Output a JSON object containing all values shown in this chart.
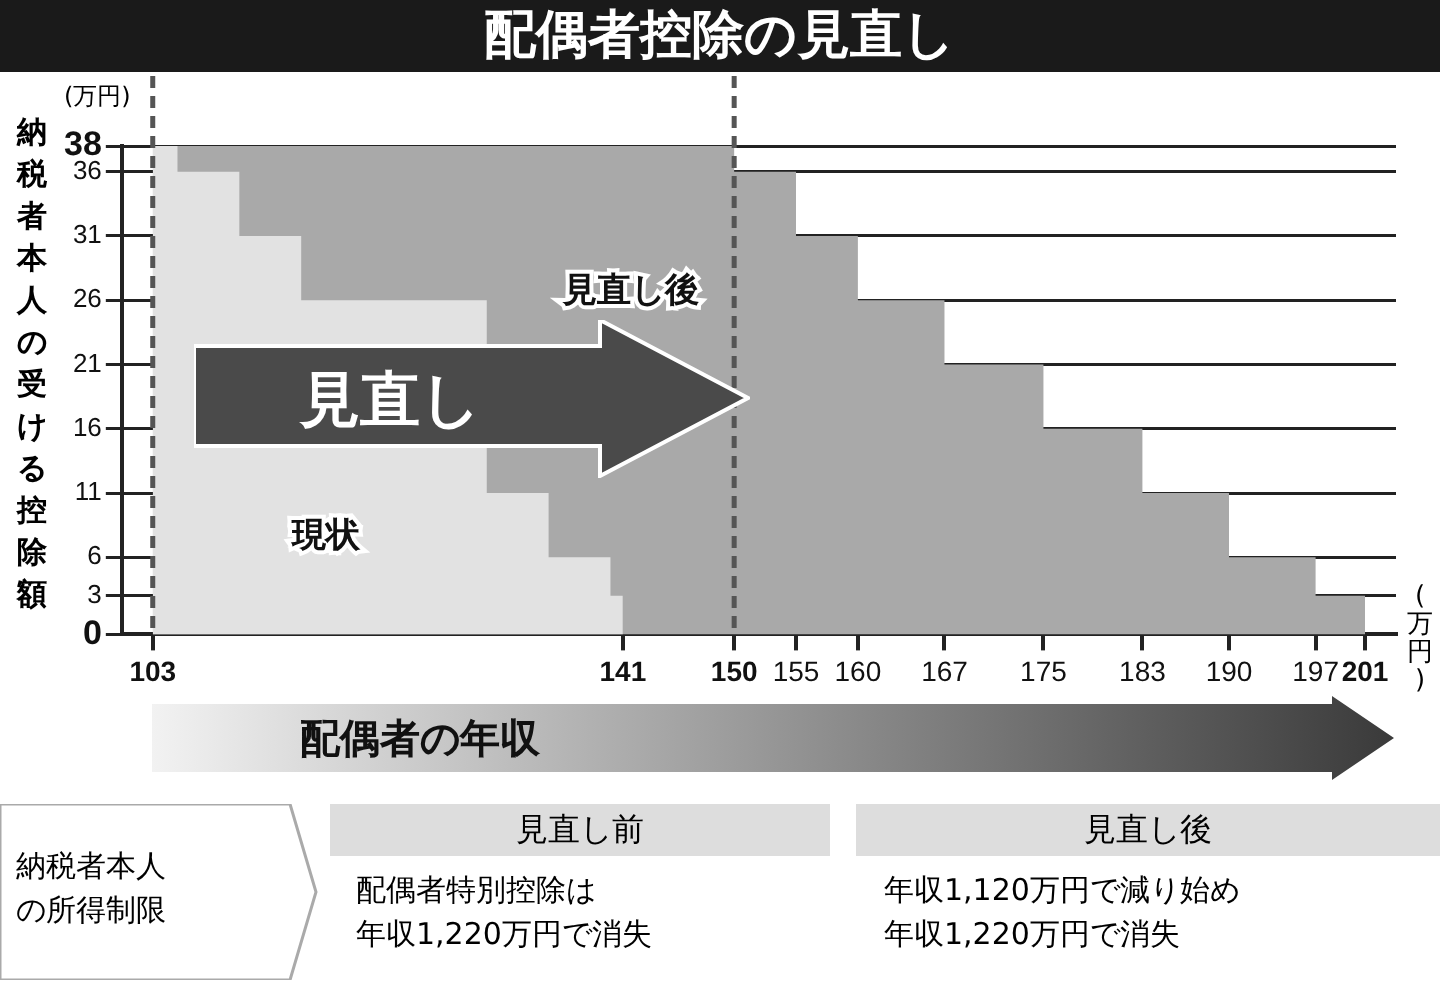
{
  "chart_data": {
    "type": "area",
    "title": "配偶者控除の見直し",
    "xlabel": "配偶者の年収",
    "ylabel": "納税者本人の受ける控除額",
    "series": [
      {
        "name": "見直し後",
        "color": "#a9a9a9",
        "x": [
          103,
          150,
          155,
          160,
          167,
          175,
          183,
          190,
          197,
          201
        ],
        "values": [
          38,
          36,
          31,
          26,
          21,
          16,
          11,
          6,
          3,
          0
        ]
      },
      {
        "name": "現状",
        "color": "#e2e2e2",
        "x": [
          103,
          105,
          110,
          115,
          120,
          125,
          130,
          135,
          140,
          141
        ],
        "values": [
          38,
          36,
          31,
          26,
          null,
          null,
          11,
          6,
          3,
          0
        ]
      }
    ],
    "xlim": [
      100.5,
      203.5
    ],
    "xticks": [
      103,
      141,
      150,
      155,
      160,
      167,
      175,
      183,
      190,
      197,
      201
    ],
    "ylim": [
      0,
      38
    ],
    "yticks": [
      0,
      3,
      6,
      11,
      16,
      21,
      26,
      31,
      36,
      38
    ],
    "grid": "y",
    "legend": false,
    "marker": "none",
    "ref_lines": [
      {
        "axis": "x",
        "value": 103,
        "line_style": "dashed",
        "color": "#555555"
      },
      {
        "axis": "x",
        "value": 150,
        "line_style": "dashed",
        "color": "#555555"
      }
    ],
    "annotations": [
      "(万円)",
      "(万円)",
      "見直し",
      "納税者本人の所得制限",
      "見直し前",
      "配偶者特別控除は",
      "年収1,220万円で消失",
      "見直し後",
      "年収1,120万円で減り始め",
      "年収1,220万円で消失"
    ]
  }
}
